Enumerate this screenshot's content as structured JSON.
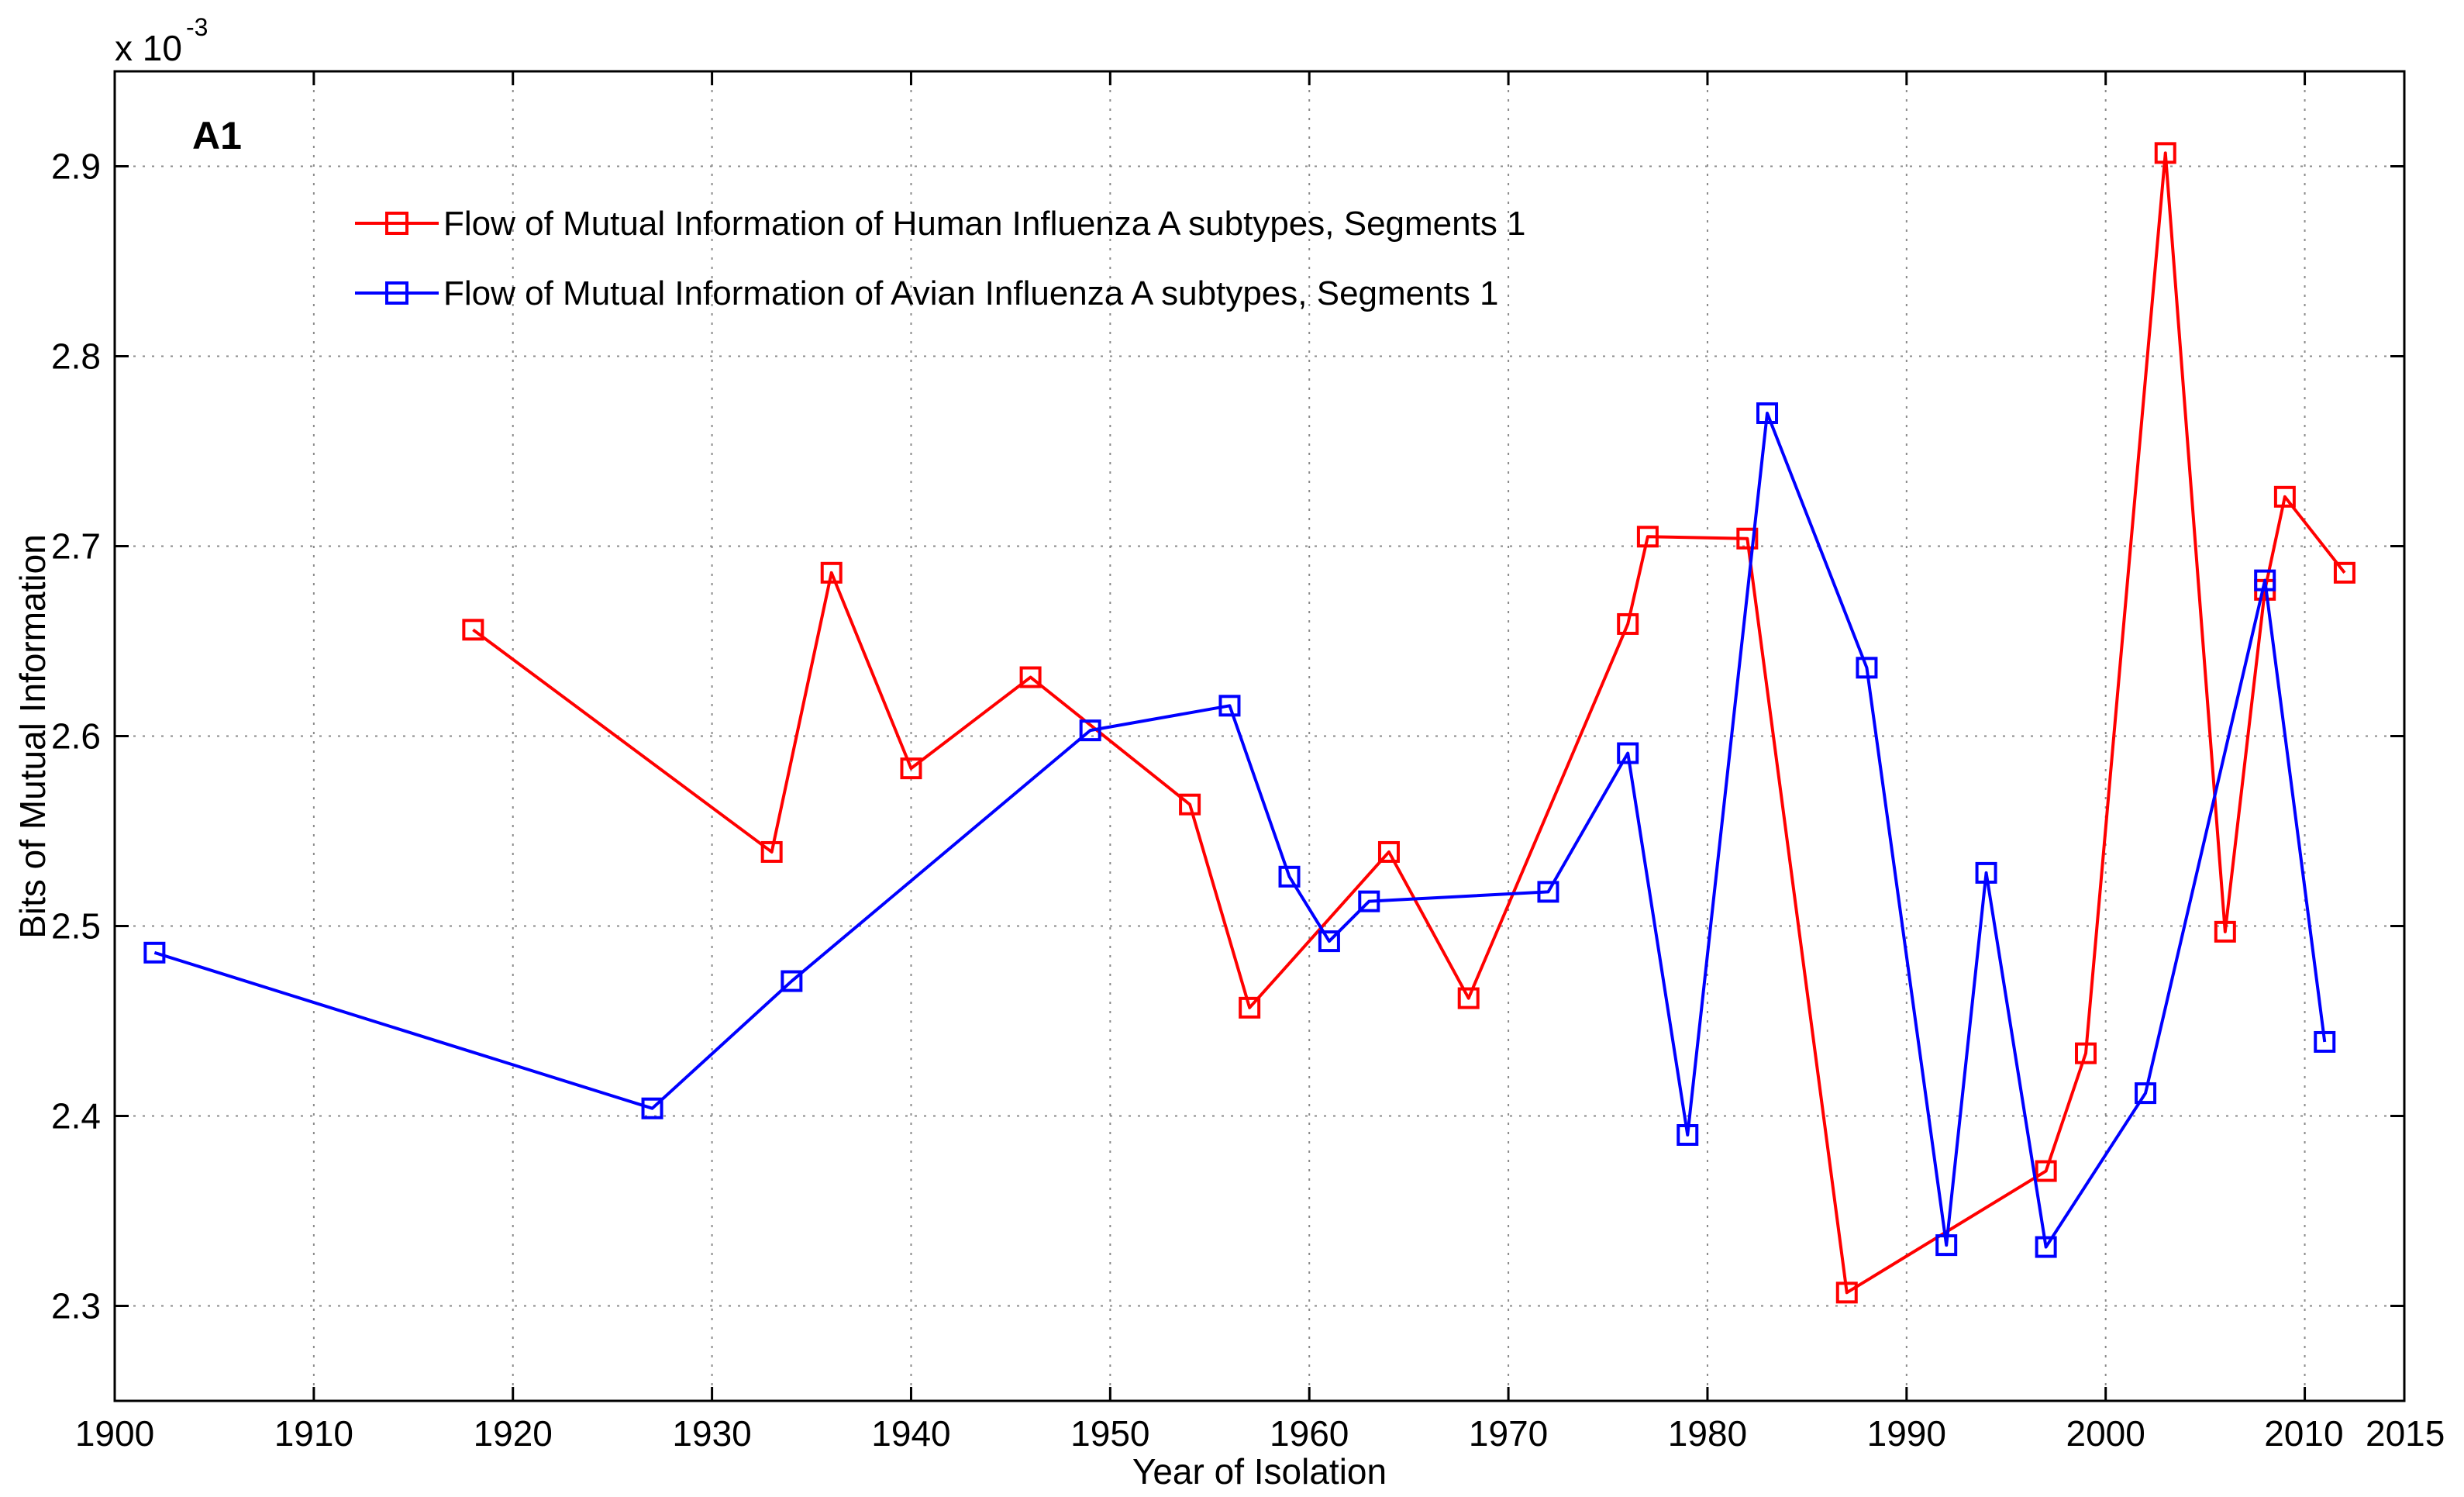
{
  "chart_data": {
    "type": "line",
    "panel_label": "A1",
    "xlabel": "Year of Isolation",
    "ylabel": "Bits of Mutual Information",
    "exponent_label": "x 10",
    "exponent_power": "-3",
    "xlim": [
      1900,
      2015
    ],
    "ylim": [
      2.25,
      2.95
    ],
    "xticks": [
      1900,
      1910,
      1920,
      1930,
      1940,
      1950,
      1960,
      1970,
      1980,
      1990,
      2000,
      2010,
      2015
    ],
    "xtick_labels": [
      "1900",
      "1910",
      "1920",
      "1930",
      "1940",
      "1950",
      "1960",
      "1970",
      "1980",
      "1990",
      "2000",
      "2010",
      "2015"
    ],
    "yticks": [
      2.3,
      2.4,
      2.5,
      2.6,
      2.7,
      2.8,
      2.9
    ],
    "ytick_labels": [
      "2.3",
      "2.4",
      "2.5",
      "2.6",
      "2.7",
      "2.8",
      "2.9"
    ],
    "grid": true,
    "legend_position": "top-left",
    "series": [
      {
        "name": "Flow of Mutual Information of Human Influenza A subtypes, Segments 1",
        "color": "#ff0000",
        "marker": "square",
        "x": [
          1918,
          1933,
          1936,
          1940,
          1946,
          1954,
          1957,
          1964,
          1968,
          1976,
          1977,
          1982,
          1987,
          1997,
          1999,
          2003,
          2006,
          2008,
          2009,
          2012
        ],
        "y": [
          2.656,
          2.539,
          2.686,
          2.583,
          2.631,
          2.564,
          2.457,
          2.539,
          2.462,
          2.659,
          2.705,
          2.704,
          2.307,
          2.371,
          2.433,
          2.907,
          2.497,
          2.677,
          2.726,
          2.686
        ]
      },
      {
        "name": "Flow of Mutual Information of Avian Influenza A subtypes, Segments 1",
        "color": "#0000ff",
        "marker": "square",
        "x": [
          1902,
          1927,
          1934,
          1949,
          1956,
          1959,
          1961,
          1963,
          1972,
          1976,
          1979,
          1983,
          1988,
          1992,
          1994,
          1997,
          2002,
          2008,
          2011
        ],
        "y": [
          2.486,
          2.404,
          2.471,
          2.603,
          2.616,
          2.526,
          2.492,
          2.513,
          2.518,
          2.591,
          2.39,
          2.77,
          2.636,
          2.332,
          2.528,
          2.331,
          2.412,
          2.682,
          2.439
        ]
      }
    ]
  }
}
